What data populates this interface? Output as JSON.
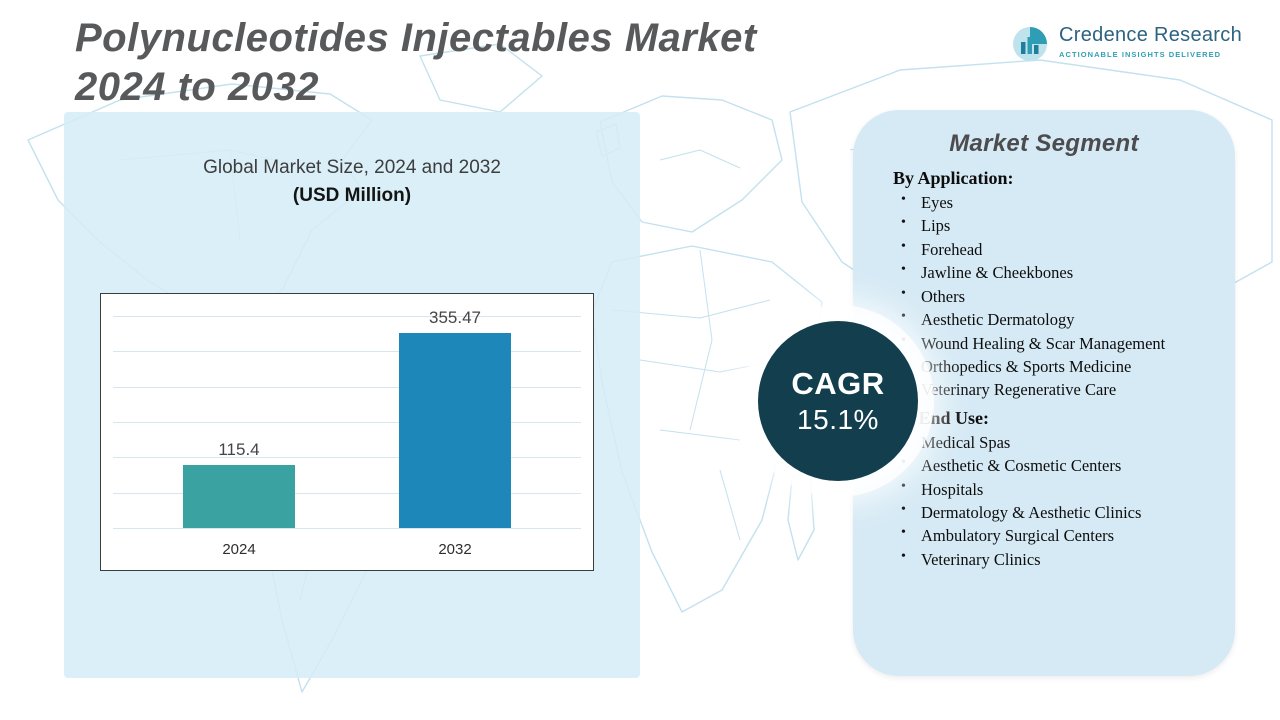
{
  "header": {
    "title_line1": "Polynucleotides Injectables Market",
    "title_line2": "2024 to 2032"
  },
  "logo": {
    "name": "Credence Research",
    "tagline": "ACTIONABLE INSIGHTS DELIVERED"
  },
  "chart_panel": {
    "subtitle_line1": "Global Market Size, 2024 and 2032",
    "subtitle_line2": "(USD Million)"
  },
  "chart_data": {
    "type": "bar",
    "title": "Global Market Size, 2024 and 2032 (USD Million)",
    "categories": [
      "2024",
      "2032"
    ],
    "values": [
      115.4,
      355.47
    ],
    "data_labels": [
      "115.4",
      "355.47"
    ],
    "bar_colors": [
      "#3aa2a0",
      "#1d87b9"
    ],
    "xlabel": "",
    "ylabel": "",
    "ylim": [
      0,
      400
    ],
    "grid": true,
    "legend": false
  },
  "cagr": {
    "label": "CAGR",
    "value": "15.1%"
  },
  "segment_panel": {
    "title": "Market Segment",
    "sections": [
      {
        "heading": "By Application:",
        "items": [
          "Eyes",
          "Lips",
          "Forehead",
          "Jawline & Cheekbones",
          "Others",
          "Aesthetic Dermatology",
          "Wound Healing & Scar Management",
          "Orthopedics & Sports Medicine",
          "Veterinary Regenerative Care"
        ]
      },
      {
        "heading": "By End Use:",
        "items": [
          "Medical Spas",
          "Aesthetic & Cosmetic Centers",
          "Hospitals",
          "Dermatology & Aesthetic Clinics",
          "Ambulatory Surgical Centers",
          "Veterinary Clinics"
        ]
      }
    ]
  },
  "colors": {
    "bar_2024": "#3aa2a0",
    "bar_2032": "#1d87b9",
    "cagr_circle": "#133e4e",
    "panel_bg": "#d6eaf5",
    "title_text": "#58595b",
    "map_line": "#c3e1ef"
  }
}
